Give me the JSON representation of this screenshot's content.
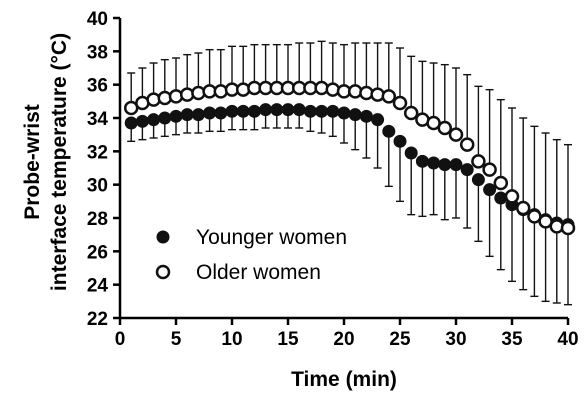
{
  "chart_data": {
    "type": "scatter",
    "title": "",
    "xlabel": "Time (min)",
    "ylabel_lines": [
      "Probe-wrist",
      "interface temperature (°C)"
    ],
    "xlim": [
      0,
      40
    ],
    "ylim": [
      22,
      40
    ],
    "x_ticks": [
      "0",
      "5",
      "10",
      "15",
      "20",
      "25",
      "30",
      "35",
      "40"
    ],
    "y_ticks": [
      "22",
      "24",
      "26",
      "28",
      "30",
      "32",
      "34",
      "36",
      "38",
      "40"
    ],
    "grid": false,
    "legend_position": "bottom-left",
    "x": [
      1,
      2,
      3,
      4,
      5,
      6,
      7,
      8,
      9,
      10,
      11,
      12,
      13,
      14,
      15,
      16,
      17,
      18,
      19,
      20,
      21,
      22,
      23,
      24,
      25,
      26,
      27,
      28,
      29,
      30,
      31,
      32,
      33,
      34,
      35,
      36,
      37,
      38,
      39,
      40
    ],
    "series": [
      {
        "name": "Younger women",
        "marker": "filled-circle",
        "color": "#111111",
        "values": [
          33.7,
          33.8,
          33.9,
          34.0,
          34.1,
          34.2,
          34.2,
          34.3,
          34.3,
          34.4,
          34.4,
          34.4,
          34.5,
          34.5,
          34.5,
          34.5,
          34.4,
          34.4,
          34.4,
          34.3,
          34.2,
          34.1,
          33.9,
          33.2,
          32.6,
          31.9,
          31.4,
          31.3,
          31.2,
          31.2,
          30.9,
          30.3,
          29.7,
          29.2,
          28.8,
          28.5,
          28.2,
          27.9,
          27.7,
          27.6
        ],
        "errors": [
          1.1,
          1.1,
          1.1,
          1.1,
          1.1,
          1.1,
          1.1,
          1.1,
          1.1,
          1.1,
          1.1,
          1.1,
          1.1,
          1.1,
          1.1,
          1.1,
          1.2,
          1.3,
          1.5,
          1.8,
          2.1,
          2.5,
          2.9,
          3.3,
          3.6,
          3.7,
          3.3,
          3.1,
          3.3,
          3.2,
          3.5,
          3.7,
          4.0,
          4.3,
          4.6,
          4.8,
          4.9,
          4.9,
          4.8,
          4.8
        ]
      },
      {
        "name": "Older women",
        "marker": "open-circle",
        "color": "#111111",
        "values": [
          34.6,
          34.9,
          35.1,
          35.2,
          35.3,
          35.4,
          35.5,
          35.6,
          35.6,
          35.7,
          35.7,
          35.8,
          35.8,
          35.8,
          35.8,
          35.8,
          35.8,
          35.8,
          35.7,
          35.6,
          35.6,
          35.5,
          35.4,
          35.3,
          34.9,
          34.3,
          33.9,
          33.7,
          33.4,
          33.0,
          32.4,
          31.4,
          30.9,
          30.1,
          29.3,
          28.6,
          28.1,
          27.8,
          27.5,
          27.4
        ],
        "errors": [
          2.1,
          2.1,
          2.2,
          2.3,
          2.3,
          2.4,
          2.4,
          2.5,
          2.5,
          2.6,
          2.6,
          2.6,
          2.6,
          2.6,
          2.6,
          2.7,
          2.7,
          2.8,
          2.8,
          2.8,
          2.9,
          3.0,
          3.1,
          3.2,
          3.3,
          3.4,
          3.5,
          3.6,
          3.8,
          4.0,
          4.2,
          4.5,
          4.8,
          5.0,
          5.3,
          5.4,
          5.4,
          5.3,
          5.2,
          5.0
        ]
      }
    ]
  }
}
